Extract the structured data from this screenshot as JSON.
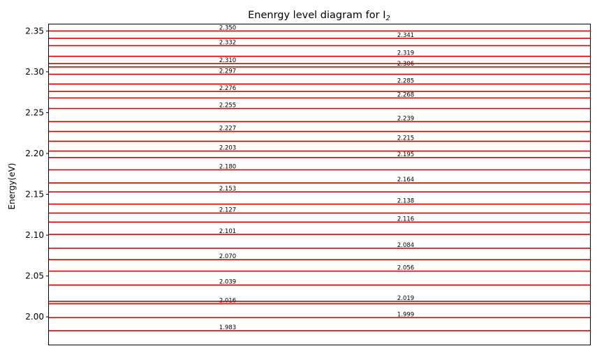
{
  "chart_data": {
    "type": "line",
    "title": "Enenrgy level diagram for I",
    "title_subscript": "2",
    "ylabel": "Energy(eV)",
    "xlabel": "",
    "ylim": [
      1.966,
      2.358
    ],
    "yticks": [
      {
        "value": 2.0,
        "label": "2.00"
      },
      {
        "value": 2.05,
        "label": "2.05"
      },
      {
        "value": 2.1,
        "label": "2.10"
      },
      {
        "value": 2.15,
        "label": "2.15"
      },
      {
        "value": 2.2,
        "label": "2.20"
      },
      {
        "value": 2.25,
        "label": "2.25"
      },
      {
        "value": 2.3,
        "label": "2.30"
      },
      {
        "value": 2.35,
        "label": "2.35"
      }
    ],
    "line_color": "#dd0000",
    "levels": [
      {
        "value": 1.983,
        "label": "1.983",
        "column": "left"
      },
      {
        "value": 1.999,
        "label": "1.999",
        "column": "right"
      },
      {
        "value": 2.016,
        "label": "2.016",
        "column": "left"
      },
      {
        "value": 2.019,
        "label": "2.019",
        "column": "right"
      },
      {
        "value": 2.039,
        "label": "2.039",
        "column": "left"
      },
      {
        "value": 2.056,
        "label": "2.056",
        "column": "right"
      },
      {
        "value": 2.07,
        "label": "2.070",
        "column": "left"
      },
      {
        "value": 2.084,
        "label": "2.084",
        "column": "right"
      },
      {
        "value": 2.101,
        "label": "2.101",
        "column": "left"
      },
      {
        "value": 2.116,
        "label": "2.116",
        "column": "right"
      },
      {
        "value": 2.127,
        "label": "2.127",
        "column": "left"
      },
      {
        "value": 2.138,
        "label": "2.138",
        "column": "right"
      },
      {
        "value": 2.153,
        "label": "2.153",
        "column": "left"
      },
      {
        "value": 2.164,
        "label": "2.164",
        "column": "right"
      },
      {
        "value": 2.18,
        "label": "2.180",
        "column": "left"
      },
      {
        "value": 2.195,
        "label": "2.195",
        "column": "right"
      },
      {
        "value": 2.203,
        "label": "2.203",
        "column": "left"
      },
      {
        "value": 2.215,
        "label": "2.215",
        "column": "right"
      },
      {
        "value": 2.227,
        "label": "2.227",
        "column": "left"
      },
      {
        "value": 2.239,
        "label": "2.239",
        "column": "right"
      },
      {
        "value": 2.255,
        "label": "2.255",
        "column": "left"
      },
      {
        "value": 2.268,
        "label": "2.268",
        "column": "right"
      },
      {
        "value": 2.276,
        "label": "2.276",
        "column": "left"
      },
      {
        "value": 2.285,
        "label": "2.285",
        "column": "right"
      },
      {
        "value": 2.297,
        "label": "2.297",
        "column": "left"
      },
      {
        "value": 2.306,
        "label": "2.306",
        "column": "right"
      },
      {
        "value": 2.31,
        "label": "2.310",
        "column": "left"
      },
      {
        "value": 2.319,
        "label": "2.319",
        "column": "right"
      },
      {
        "value": 2.332,
        "label": "2.332",
        "column": "left"
      },
      {
        "value": 2.341,
        "label": "2.341",
        "column": "right"
      },
      {
        "value": 2.35,
        "label": "2.350",
        "column": "left"
      }
    ]
  }
}
